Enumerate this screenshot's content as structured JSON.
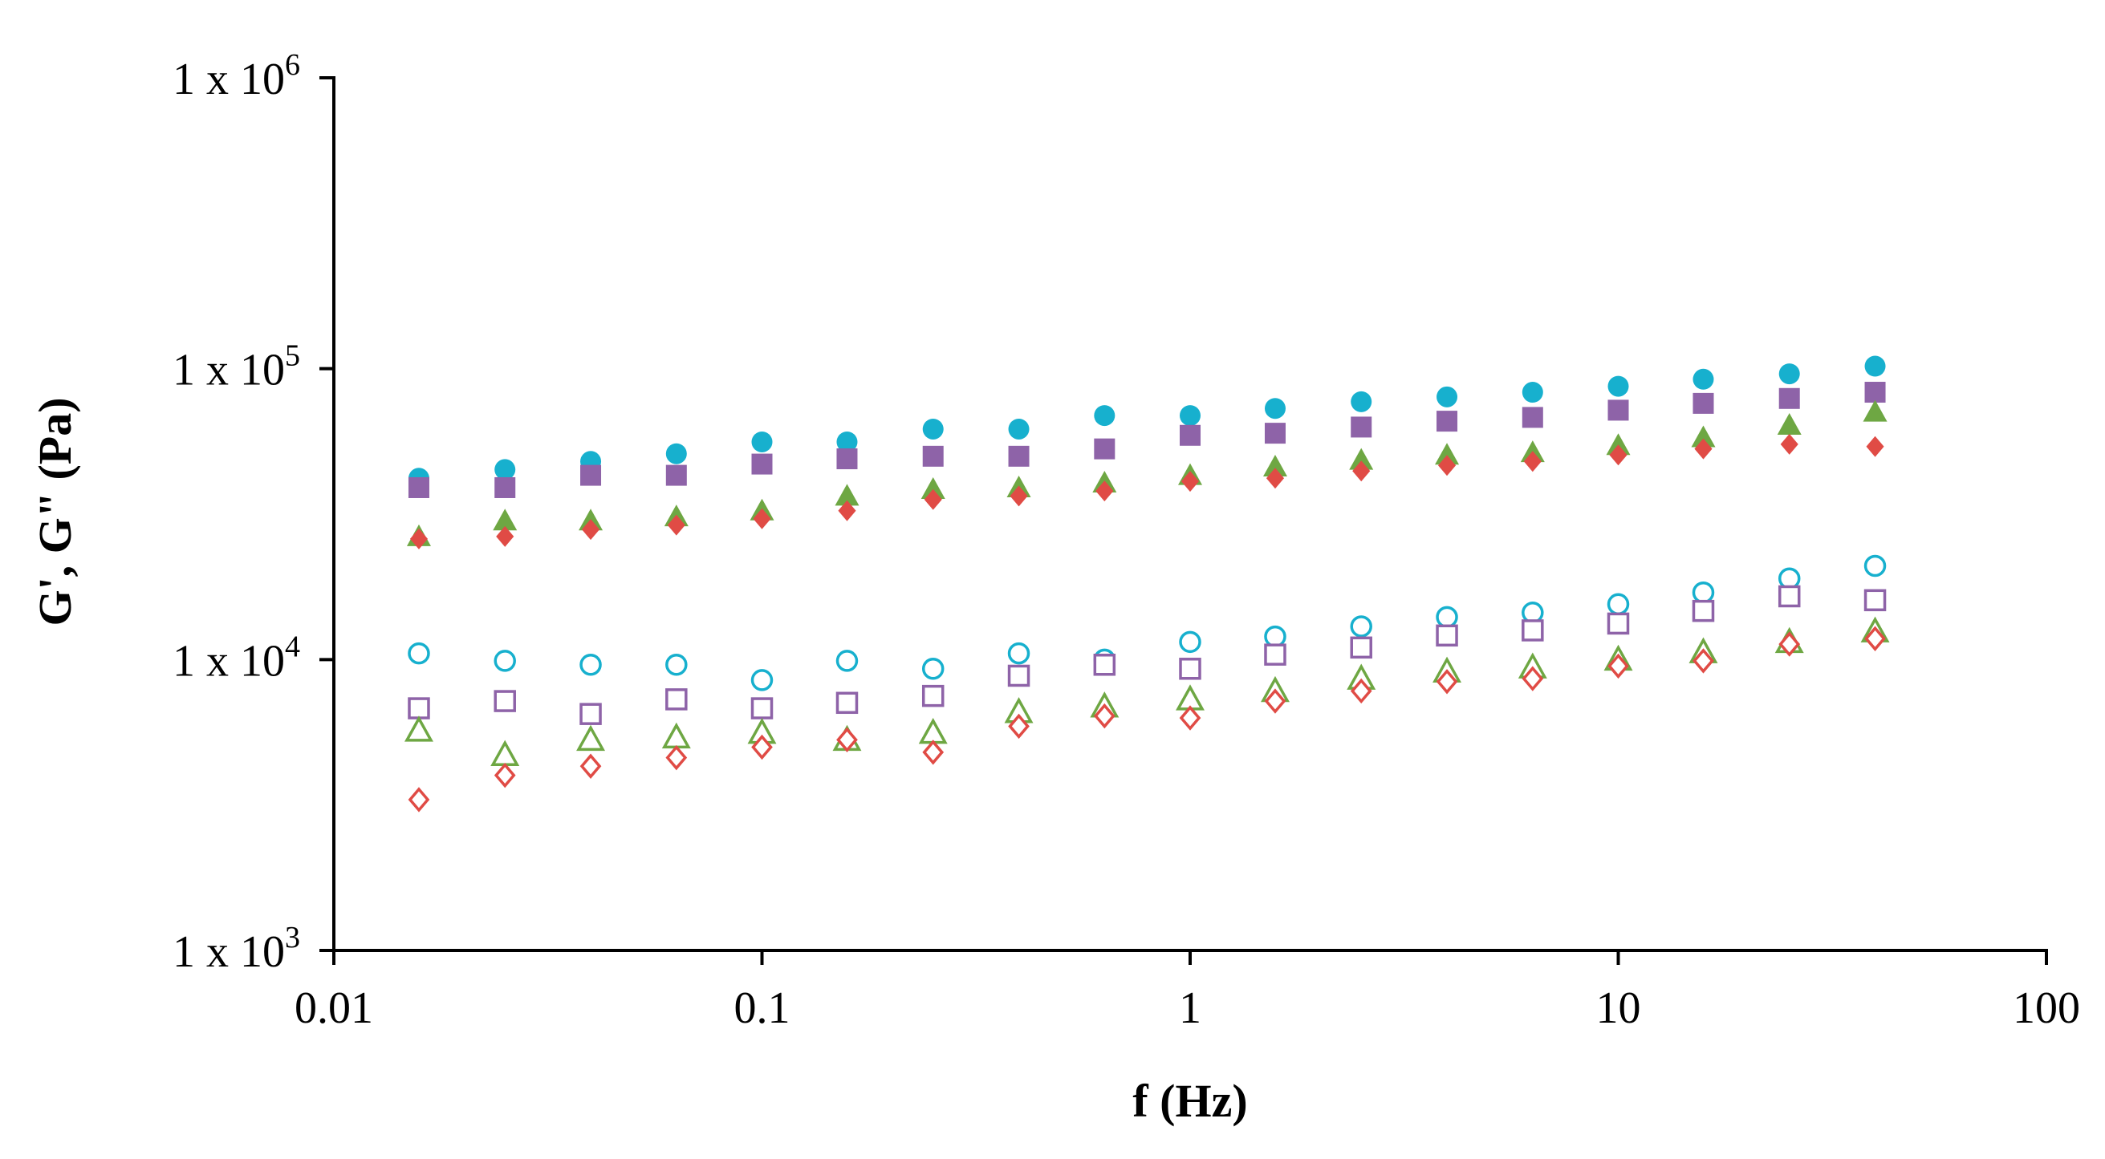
{
  "chart_data": {
    "type": "scatter",
    "title": "",
    "xlabel": "f (Hz)",
    "ylabel": "G', G\" (Pa)",
    "x_scale": "log",
    "y_scale": "log",
    "xlim": [
      0.01,
      100
    ],
    "ylim": [
      1000,
      1000000
    ],
    "grid": false,
    "legend": "none",
    "x_ticks": [
      {
        "value": 0.01,
        "label": "0.01"
      },
      {
        "value": 0.1,
        "label": "0.1"
      },
      {
        "value": 1,
        "label": "1"
      },
      {
        "value": 10,
        "label": "10"
      },
      {
        "value": 100,
        "label": "100"
      }
    ],
    "y_ticks": [
      {
        "value": 1000,
        "base": "1 x 10",
        "exp": "3"
      },
      {
        "value": 10000,
        "base": "1 x 10",
        "exp": "4"
      },
      {
        "value": 100000,
        "base": "1 x 10",
        "exp": "5"
      },
      {
        "value": 1000000,
        "base": "1 x 10",
        "exp": "6"
      }
    ],
    "x": [
      0.0158,
      0.0251,
      0.0398,
      0.0631,
      0.1,
      0.158,
      0.251,
      0.398,
      0.631,
      1,
      1.58,
      2.51,
      3.98,
      6.31,
      10,
      15.8,
      25.1,
      39.8
    ],
    "series": [
      {
        "marker": "circle",
        "filled": true,
        "color": "#17B0CE",
        "values": [
          42000,
          45000,
          48000,
          51000,
          56000,
          56000,
          62000,
          62000,
          69000,
          69000,
          73000,
          77000,
          80000,
          83000,
          87000,
          92000,
          96000,
          102000
        ]
      },
      {
        "marker": "square",
        "filled": true,
        "color": "#8E63A8",
        "values": [
          39000,
          39000,
          43000,
          43000,
          47000,
          49000,
          50000,
          50000,
          53000,
          59000,
          60000,
          63000,
          66000,
          68000,
          72000,
          76000,
          79000,
          83000
        ]
      },
      {
        "marker": "triangle",
        "filled": true,
        "color": "#6EA743",
        "values": [
          26500,
          30000,
          30000,
          31000,
          32500,
          36500,
          38500,
          39000,
          40500,
          43000,
          46000,
          48500,
          50500,
          51500,
          54500,
          58000,
          64000,
          71000
        ]
      },
      {
        "marker": "diamond",
        "filled": true,
        "color": "#E04B45",
        "values": [
          26000,
          26500,
          28000,
          29000,
          30500,
          32500,
          35500,
          36500,
          38000,
          41000,
          42000,
          44500,
          46500,
          48000,
          50500,
          53000,
          55000,
          54000
        ]
      },
      {
        "marker": "circle",
        "filled": false,
        "color": "#17B0CE",
        "values": [
          10500,
          9900,
          9600,
          9600,
          8500,
          9900,
          9300,
          10500,
          10000,
          11500,
          12000,
          13000,
          14000,
          14500,
          15500,
          17000,
          19000,
          21000
        ]
      },
      {
        "marker": "square",
        "filled": false,
        "color": "#8E63A8",
        "values": [
          6800,
          7200,
          6500,
          7300,
          6800,
          7100,
          7500,
          8800,
          9600,
          9300,
          10400,
          11000,
          12100,
          12600,
          13300,
          14700,
          16500,
          16000
        ]
      },
      {
        "marker": "triangle",
        "filled": false,
        "color": "#6EA743",
        "values": [
          5700,
          4700,
          5300,
          5400,
          5600,
          5300,
          5600,
          6600,
          6900,
          7300,
          7800,
          8600,
          9100,
          9400,
          10000,
          10600,
          11500,
          12500
        ]
      },
      {
        "marker": "diamond",
        "filled": false,
        "color": "#E04B45",
        "values": [
          3300,
          4000,
          4300,
          4600,
          5000,
          5300,
          4800,
          5900,
          6400,
          6300,
          7200,
          7800,
          8400,
          8600,
          9500,
          9900,
          11300,
          11800
        ]
      }
    ]
  }
}
